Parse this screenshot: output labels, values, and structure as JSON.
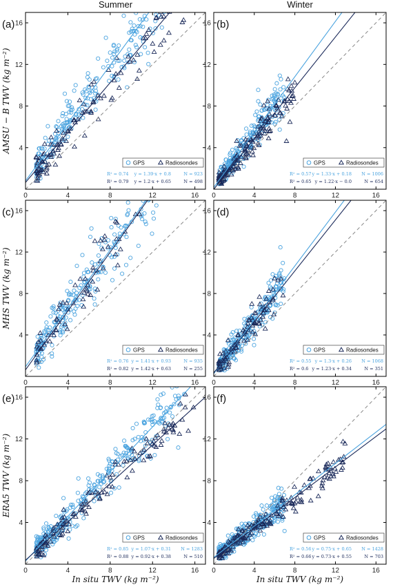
{
  "colors": {
    "gps": "#4aa3df",
    "radiosondes": "#1b2a5a",
    "one_to_one": "#888888",
    "axes": "#000000"
  },
  "figure": {
    "columns": [
      "Summer",
      "Winter"
    ],
    "x_axis_label": "In situ TWV (kg m⁻²)",
    "y_axis_labels": [
      "AMSU − B TWV (kg m⁻²)",
      "MHS TWV (kg m⁻²)",
      "ERA5 TWV (kg m⁻²)"
    ],
    "legend": {
      "gps": "GPS",
      "radiosondes": "Radiosondes"
    }
  },
  "chart_data": [
    {
      "type": "scatter",
      "panel": "(a)",
      "season": "Summer",
      "product": "AMSU−B",
      "xlim": [
        0,
        17
      ],
      "ylim": [
        0,
        17
      ],
      "xticks": [
        0,
        4,
        8,
        12,
        16
      ],
      "yticks": [
        4,
        8,
        12,
        16
      ],
      "grid": false,
      "legend_position": "lower-right",
      "series": [
        {
          "name": "GPS",
          "marker": "circle",
          "stats": {
            "r2": "R² = 0.74",
            "fit": "y = 1.39·x + 0.8",
            "n": "N = 923"
          },
          "fit_slope": 1.39,
          "fit_intercept": 0.8,
          "point_count": 923,
          "x_range": [
            1,
            14
          ],
          "noise": 2.2
        },
        {
          "name": "Radiosondes",
          "marker": "triangle",
          "stats": {
            "r2": "R² = 0.79",
            "fit": "y = 1.2·x + 0.65",
            "n": "N = 498"
          },
          "fit_slope": 1.2,
          "fit_intercept": 0.65,
          "point_count": 498,
          "x_range": [
            1,
            16
          ],
          "noise": 1.8
        }
      ]
    },
    {
      "type": "scatter",
      "panel": "(b)",
      "season": "Winter",
      "product": "AMSU−B",
      "xlim": [
        0,
        17
      ],
      "ylim": [
        0,
        17
      ],
      "xticks": [
        0,
        4,
        8,
        12,
        16
      ],
      "yticks": [
        4,
        8,
        12,
        16
      ],
      "grid": false,
      "legend_position": "lower-right",
      "series": [
        {
          "name": "GPS",
          "marker": "circle",
          "stats": {
            "r2": "R² = 0.57",
            "fit": "y = 1.33·x + 0.18",
            "n": "N = 1006"
          },
          "fit_slope": 1.33,
          "fit_intercept": 0.18,
          "point_count": 1006,
          "x_range": [
            0.5,
            7
          ],
          "noise": 1.3
        },
        {
          "name": "Radiosondes",
          "marker": "triangle",
          "stats": {
            "r2": "R² = 0.65",
            "fit": "y = 1.22·x − 0.0",
            "n": "N = 654"
          },
          "fit_slope": 1.22,
          "fit_intercept": 0.0,
          "point_count": 654,
          "x_range": [
            0.5,
            8
          ],
          "noise": 1.1
        }
      ]
    },
    {
      "type": "scatter",
      "panel": "(c)",
      "season": "Summer",
      "product": "MHS",
      "xlim": [
        0,
        17
      ],
      "ylim": [
        0,
        17
      ],
      "xticks": [
        0,
        4,
        8,
        12,
        16
      ],
      "yticks": [
        4,
        8,
        12,
        16
      ],
      "grid": false,
      "legend_position": "lower-right",
      "series": [
        {
          "name": "GPS",
          "marker": "circle",
          "stats": {
            "r2": "R² = 0.76",
            "fit": "y = 1.41·x + 0.93",
            "n": "N = 935"
          },
          "fit_slope": 1.41,
          "fit_intercept": 0.93,
          "point_count": 935,
          "x_range": [
            1,
            13
          ],
          "noise": 2.2
        },
        {
          "name": "Radiosondes",
          "marker": "triangle",
          "stats": {
            "r2": "R² = 0.82",
            "fit": "y = 1.42·x + 0.63",
            "n": "N = 255"
          },
          "fit_slope": 1.42,
          "fit_intercept": 0.63,
          "point_count": 255,
          "x_range": [
            1,
            11
          ],
          "noise": 1.6
        }
      ]
    },
    {
      "type": "scatter",
      "panel": "(d)",
      "season": "Winter",
      "product": "MHS",
      "xlim": [
        0,
        17
      ],
      "ylim": [
        0,
        17
      ],
      "xticks": [
        0,
        4,
        8,
        12,
        16
      ],
      "yticks": [
        4,
        8,
        12,
        16
      ],
      "grid": false,
      "legend_position": "lower-right",
      "series": [
        {
          "name": "GPS",
          "marker": "circle",
          "stats": {
            "r2": "R² = 0.55",
            "fit": "y = 1.3·x + 0.26",
            "n": "N = 1068"
          },
          "fit_slope": 1.3,
          "fit_intercept": 0.26,
          "point_count": 1068,
          "x_range": [
            0.5,
            7
          ],
          "noise": 1.3
        },
        {
          "name": "Radiosondes",
          "marker": "triangle",
          "stats": {
            "r2": "R² = 0.6",
            "fit": "y = 1.23·x + 0.34",
            "n": "N = 351"
          },
          "fit_slope": 1.23,
          "fit_intercept": 0.34,
          "point_count": 351,
          "x_range": [
            0.5,
            7
          ],
          "noise": 1.1
        }
      ]
    },
    {
      "type": "scatter",
      "panel": "(e)",
      "season": "Summer",
      "product": "ERA5",
      "xlim": [
        0,
        17
      ],
      "ylim": [
        0,
        17
      ],
      "xticks": [
        0,
        4,
        8,
        12,
        16
      ],
      "yticks": [
        4,
        8,
        12,
        16
      ],
      "grid": false,
      "legend_position": "lower-right",
      "series": [
        {
          "name": "GPS",
          "marker": "circle",
          "stats": {
            "r2": "R² = 0.85",
            "fit": "y = 1.07·x + 0.31",
            "n": "N = 1283"
          },
          "fit_slope": 1.07,
          "fit_intercept": 0.31,
          "point_count": 1283,
          "x_range": [
            1,
            15
          ],
          "noise": 1.6
        },
        {
          "name": "Radiosondes",
          "marker": "triangle",
          "stats": {
            "r2": "R² = 0.88",
            "fit": "y = 0.92·x + 0.38",
            "n": "N = 510"
          },
          "fit_slope": 0.92,
          "fit_intercept": 0.38,
          "point_count": 510,
          "x_range": [
            1,
            16
          ],
          "noise": 1.2
        }
      ]
    },
    {
      "type": "scatter",
      "panel": "(f)",
      "season": "Winter",
      "product": "ERA5",
      "xlim": [
        0,
        17
      ],
      "ylim": [
        0,
        17
      ],
      "xticks": [
        0,
        4,
        8,
        12,
        16
      ],
      "yticks": [
        4,
        8,
        12,
        16
      ],
      "grid": false,
      "legend_position": "lower-right",
      "series": [
        {
          "name": "GPS",
          "marker": "circle",
          "stats": {
            "r2": "R² = 0.56",
            "fit": "y = 0.75·x + 0.65",
            "n": "N = 1428"
          },
          "fit_slope": 0.75,
          "fit_intercept": 0.65,
          "point_count": 1428,
          "x_range": [
            0.5,
            7
          ],
          "noise": 0.9
        },
        {
          "name": "Radiosondes",
          "marker": "triangle",
          "stats": {
            "r2": "R² = 0.66",
            "fit": "y = 0.73·x + 0.55",
            "n": "N = 703"
          },
          "fit_slope": 0.73,
          "fit_intercept": 0.55,
          "point_count": 703,
          "x_range": [
            0.5,
            13
          ],
          "noise": 0.8
        }
      ]
    }
  ]
}
